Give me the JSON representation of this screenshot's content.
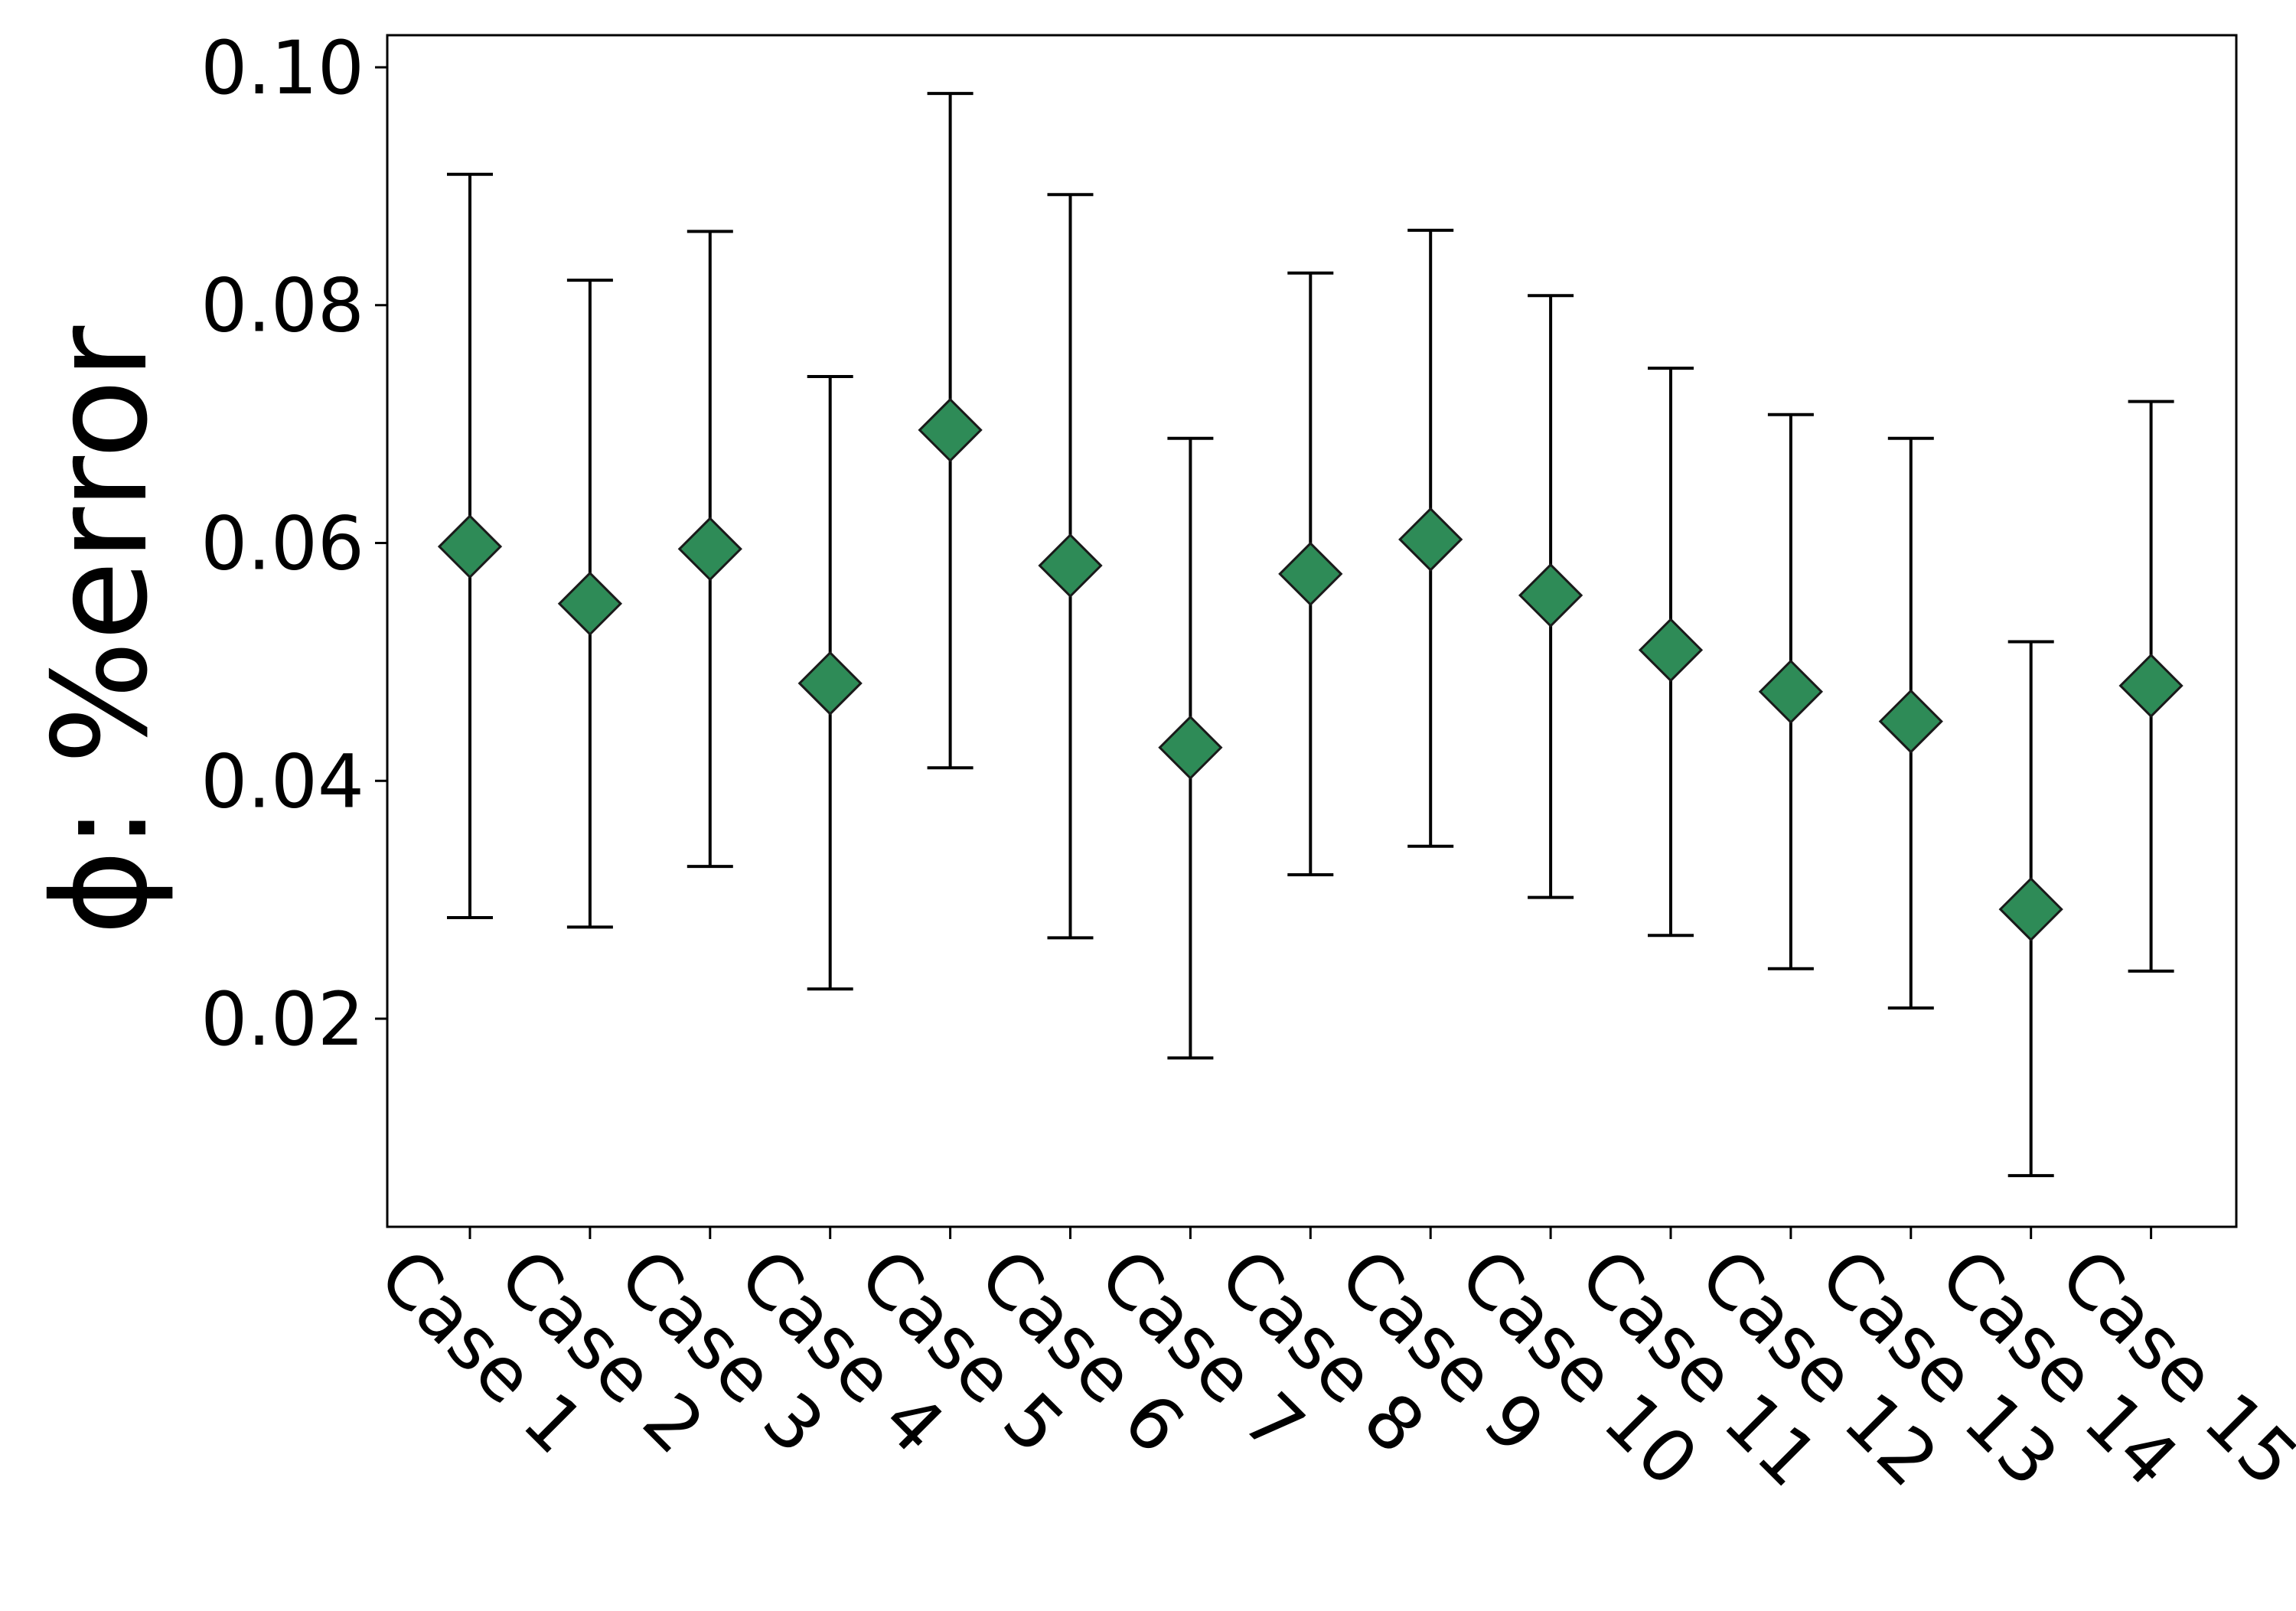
{
  "chart_data": {
    "type": "scatter",
    "title": "",
    "xlabel": "",
    "ylabel": "ϕ: %error",
    "categories": [
      "Case 1",
      "Case 2",
      "Case 3",
      "Case 4",
      "Case 5",
      "Case 6",
      "Case 7",
      "Case 8",
      "Case 9",
      "Case 10",
      "Case 11",
      "Case 12",
      "Case 13",
      "Case 14",
      "Case 15"
    ],
    "values": [
      0.0597,
      0.0549,
      0.0595,
      0.0482,
      0.0695,
      0.0581,
      0.0428,
      0.0574,
      0.0603,
      0.0556,
      0.051,
      0.0475,
      0.045,
      0.0292,
      0.048
    ],
    "error_low": [
      0.0285,
      0.0277,
      0.0328,
      0.0225,
      0.0411,
      0.0268,
      0.0167,
      0.0321,
      0.0345,
      0.0302,
      0.027,
      0.0242,
      0.0209,
      0.0068,
      0.024
    ],
    "error_high": [
      0.091,
      0.0821,
      0.0862,
      0.074,
      0.0978,
      0.0893,
      0.0688,
      0.0827,
      0.0863,
      0.0808,
      0.0747,
      0.0708,
      0.0688,
      0.0517,
      0.0719
    ],
    "yticks": [
      "0.02",
      "0.04",
      "0.06",
      "0.08",
      "0.10"
    ],
    "ylim": [
      0.0025,
      0.1027
    ],
    "grid": false,
    "legend": "none",
    "marker": "diamond",
    "colors": {
      "marker_fill": "#2e8b57",
      "marker_edge": "#1a1a1a",
      "errorbar": "#000000"
    }
  }
}
